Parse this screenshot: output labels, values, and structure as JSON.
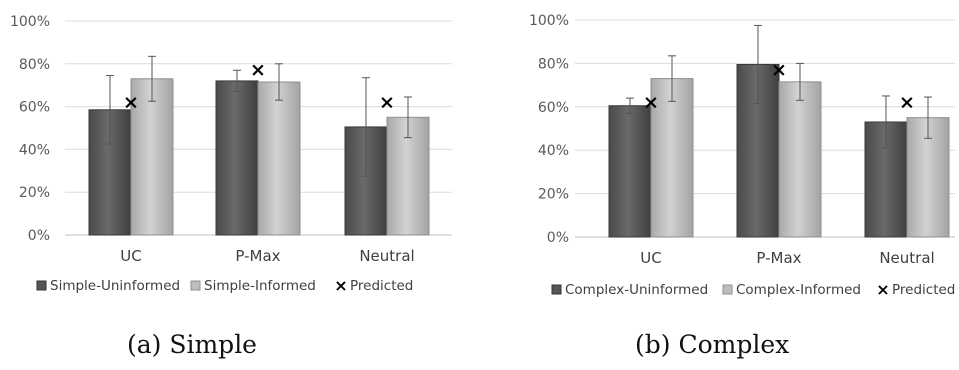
{
  "chart_data": [
    {
      "type": "bar",
      "categories": [
        "UC",
        "P-Max",
        "Neutral"
      ],
      "series": [
        {
          "name": "Simple-Uninformed",
          "values": [
            58.5,
            72,
            50.5
          ],
          "errors": [
            16,
            5,
            23
          ],
          "color": "#5a5a5a"
        },
        {
          "name": "Simple-Informed",
          "values": [
            73,
            71.5,
            55
          ],
          "errors": [
            10.5,
            8.5,
            9.5
          ],
          "color": "#bdbdbd"
        }
      ],
      "markers": {
        "name": "Predicted",
        "symbol": "×",
        "values": [
          62.5,
          77.5,
          62.5
        ]
      },
      "y_ticks": [
        "0%",
        "20%",
        "40%",
        "60%",
        "80%",
        "100%"
      ],
      "ylim": [
        0,
        100
      ],
      "grid": true,
      "legend": "bottom",
      "caption": "(a) Simple"
    },
    {
      "type": "bar",
      "categories": [
        "UC",
        "P-Max",
        "Neutral"
      ],
      "series": [
        {
          "name": "Complex-Uninformed",
          "values": [
            60.5,
            79.5,
            53
          ],
          "errors": [
            3.5,
            18,
            12
          ],
          "color": "#5a5a5a"
        },
        {
          "name": "Complex-Informed",
          "values": [
            73,
            71.5,
            55
          ],
          "errors": [
            10.5,
            8.5,
            9.5
          ],
          "color": "#bdbdbd"
        }
      ],
      "markers": {
        "name": "Predicted",
        "symbol": "×",
        "values": [
          62.5,
          77.5,
          62.5
        ]
      },
      "y_ticks": [
        "0%",
        "20%",
        "40%",
        "60%",
        "80%",
        "100%"
      ],
      "ylim": [
        0,
        100
      ],
      "grid": true,
      "legend": "bottom",
      "caption": "(b) Complex"
    }
  ]
}
